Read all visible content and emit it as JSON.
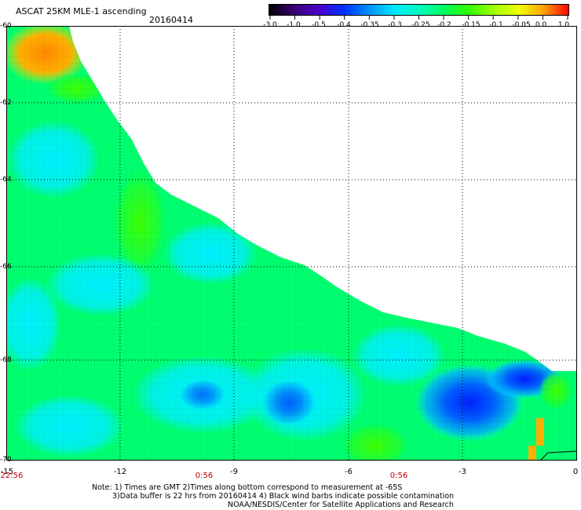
{
  "header": {
    "title": "ASCAT 25KM MLE-1 ascending",
    "date": "20160414"
  },
  "colorbar": {
    "labels": [
      "-3.0",
      "-1.0",
      "-0.5",
      "-0.4",
      "-0.35",
      "-0.3",
      "-0.25",
      "-0.2",
      "-0.15",
      "-0.1",
      "-0.05",
      "0.0",
      "1.0"
    ],
    "colors": [
      "#000000",
      "#3a0070",
      "#4a00c8",
      "#0030ff",
      "#0090ff",
      "#00e8ff",
      "#00ffc0",
      "#00ff60",
      "#30ff00",
      "#a0ff00",
      "#f0ff00",
      "#ffa000",
      "#ff0000"
    ]
  },
  "axes": {
    "lat_labels": [
      "-60",
      "-62",
      "-64",
      "-66",
      "-68",
      "-70"
    ],
    "lon_labels": [
      "-15",
      "-12",
      "-9",
      "-6",
      "-3",
      "0"
    ],
    "time_labels": [
      "22:56",
      "0:56",
      "0:56"
    ]
  },
  "notes": {
    "line1": "Note: 1) Times are GMT 2)Times along bottom correspond to measurement at -65S",
    "line2": "3)Data buffer is 22 hrs from 20160414 4) Black wind barbs indicate possible contamination",
    "line3": "NOAA/NESDIS/Center for Satellite Applications and Research"
  }
}
